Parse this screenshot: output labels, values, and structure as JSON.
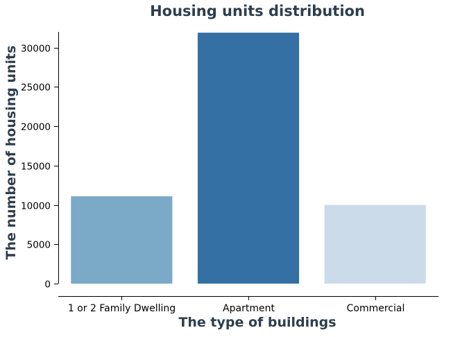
{
  "chart_data": {
    "type": "bar",
    "title": "Housing units distribution",
    "xlabel": "The type of buildings",
    "ylabel": "The number of housing units",
    "categories": [
      "1 or 2 Family Dwelling",
      "Apartment",
      "Commercial"
    ],
    "values": [
      11100,
      31900,
      10000
    ],
    "ylim": [
      0,
      32000
    ],
    "yticks": [
      0,
      5000,
      10000,
      15000,
      20000,
      25000,
      30000
    ],
    "grid": false,
    "legend": "none",
    "colors": [
      "#7aaac8",
      "#3470a3",
      "#cbdbea"
    ],
    "text_color": "#2e3e4e"
  }
}
